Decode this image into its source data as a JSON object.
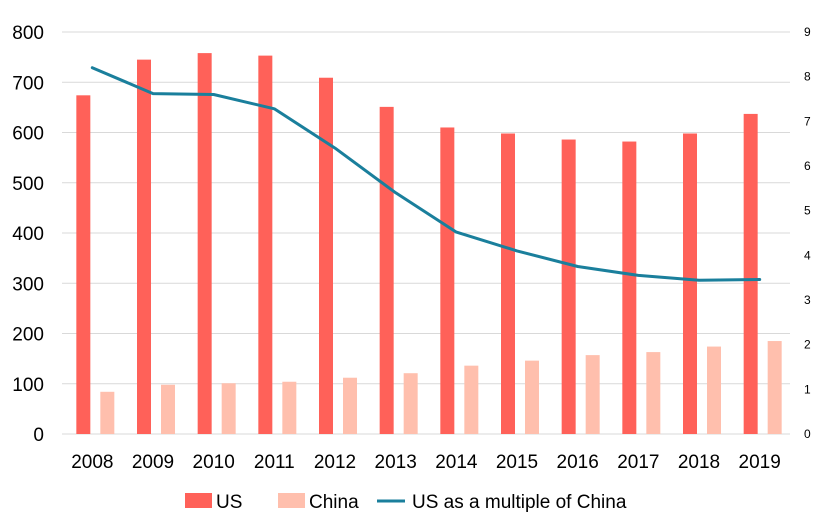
{
  "chart_data": {
    "type": "bar",
    "categories": [
      "2008",
      "2009",
      "2010",
      "2011",
      "2012",
      "2013",
      "2014",
      "2015",
      "2016",
      "2017",
      "2018",
      "2019"
    ],
    "series": [
      {
        "name": "US",
        "kind": "bar",
        "axis": "left",
        "color": "#ff6159",
        "values": [
          674,
          745,
          758,
          753,
          709,
          651,
          610,
          598,
          586,
          582,
          598,
          637
        ]
      },
      {
        "name": "China",
        "kind": "bar",
        "axis": "left",
        "color": "#ffbfad",
        "values": [
          84,
          98,
          101,
          104,
          112,
          121,
          136,
          146,
          157,
          163,
          174,
          185
        ]
      },
      {
        "name": "US as a multiple of China",
        "kind": "line",
        "axis": "right",
        "color": "#1a7f9c",
        "values": [
          8.2,
          7.62,
          7.6,
          7.28,
          6.4,
          5.4,
          4.52,
          4.1,
          3.75,
          3.55,
          3.44,
          3.46
        ]
      }
    ],
    "y_left": {
      "min": 0,
      "max": 800,
      "ticks": [
        0,
        100,
        200,
        300,
        400,
        500,
        600,
        700,
        800
      ]
    },
    "y_right": {
      "min": 0,
      "max": 9,
      "ticks": [
        0,
        1,
        2,
        3,
        4,
        5,
        6,
        7,
        8,
        9
      ]
    },
    "title": "",
    "xlabel": "",
    "ylabel": "",
    "grid": "horizontal",
    "legend": "bottom"
  }
}
